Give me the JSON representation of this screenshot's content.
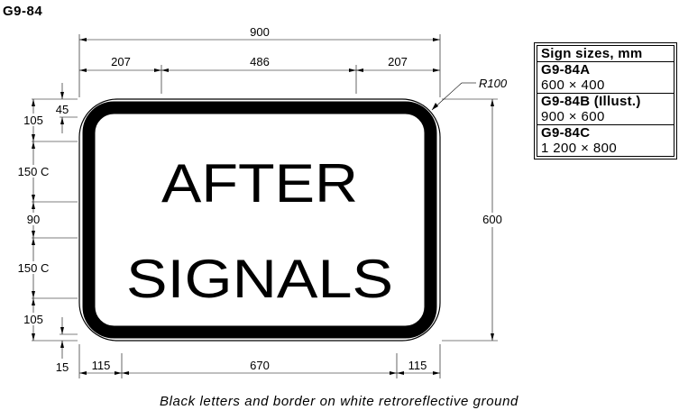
{
  "sign_code": "G9-84",
  "legend": {
    "line1": "AFTER",
    "line2": "SIGNALS",
    "text_color": "#000000",
    "ground_color": "#ffffff"
  },
  "dimensions": {
    "overall_width": "900",
    "left_margin_top": "207",
    "text_width": "486",
    "right_margin_top": "207",
    "corner_radius": "R100",
    "overall_height": "600",
    "top_margin": "105",
    "border_offset_top": "45",
    "line1_height": "150 C",
    "line_gap": "90",
    "line2_height": "150 C",
    "bottom_margin": "105",
    "border_offset_bottom": "15",
    "bottom_left": "115",
    "bottom_middle": "670",
    "bottom_right": "115"
  },
  "sizes_table": {
    "header": "Sign sizes, mm",
    "rows": [
      {
        "code": "G9-84A",
        "dims": "600 × 400"
      },
      {
        "code": "G9-84B (Illust.)",
        "dims": "900 × 600"
      },
      {
        "code": "G9-84C",
        "dims": "1 200 × 800"
      }
    ]
  },
  "caption": "Black letters and border on white retroreflective ground"
}
